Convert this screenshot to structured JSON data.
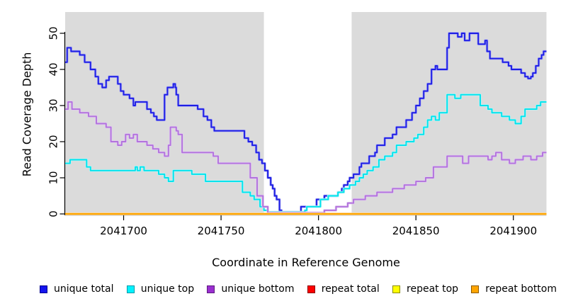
{
  "axis": {
    "xlabel": "Coordinate in Reference Genome",
    "ylabel": "Read Coverage Depth"
  },
  "legend": {
    "items": [
      {
        "label": "unique total",
        "fill": "#1414EE",
        "border": "#000090"
      },
      {
        "label": "unique top",
        "fill": "#00F2FF",
        "border": "#009AA8"
      },
      {
        "label": "unique bottom",
        "fill": "#9A2FD0",
        "border": "#5E1A80"
      },
      {
        "label": "repeat total",
        "fill": "#FF0000",
        "border": "#8B0000"
      },
      {
        "label": "repeat top",
        "fill": "#FFFF00",
        "border": "#8B8B00"
      },
      {
        "label": "repeat bottom",
        "fill": "#FFA500",
        "border": "#8B5A00"
      }
    ]
  },
  "chart_data": {
    "type": "line",
    "step_mode": "after",
    "title": "",
    "xlabel": "Coordinate in Reference Genome",
    "ylabel": "Read Coverage Depth",
    "x_range": [
      2041670,
      2041917
    ],
    "y_range": [
      0,
      56
    ],
    "x_ticks": [
      2041700,
      2041750,
      2041800,
      2041850,
      2041900
    ],
    "y_ticks": [
      0,
      10,
      20,
      30,
      40,
      50
    ],
    "grid": false,
    "legend_position": "bottom",
    "plot_background": "#DBDBDB",
    "gap_band": {
      "from": 2041772,
      "to": 2041817,
      "color": "#FFFFFF"
    },
    "axis_color": "#000000",
    "series": [
      {
        "name": "unique total",
        "color": "#1E1EE4",
        "halo": "#A8A8F2",
        "points": [
          [
            2041670,
            42
          ],
          [
            2041671,
            46
          ],
          [
            2041673,
            45
          ],
          [
            2041677.5,
            44
          ],
          [
            2041680,
            42
          ],
          [
            2041683,
            40
          ],
          [
            2041685.5,
            38
          ],
          [
            2041687,
            36
          ],
          [
            2041689,
            35
          ],
          [
            2041691,
            37
          ],
          [
            2041692.5,
            38
          ],
          [
            2041697,
            36
          ],
          [
            2041698.5,
            34
          ],
          [
            2041700,
            33
          ],
          [
            2041703,
            32
          ],
          [
            2041705,
            30
          ],
          [
            2041706,
            31
          ],
          [
            2041712,
            29
          ],
          [
            2041714,
            28
          ],
          [
            2041715.5,
            27
          ],
          [
            2041717,
            26
          ],
          [
            2041721,
            33
          ],
          [
            2041722.5,
            35
          ],
          [
            2041725.5,
            36
          ],
          [
            2041726.5,
            35
          ],
          [
            2041727,
            33
          ],
          [
            2041728,
            30
          ],
          [
            2041738,
            29
          ],
          [
            2041741,
            27
          ],
          [
            2041743,
            26
          ],
          [
            2041745,
            24
          ],
          [
            2041746.5,
            23
          ],
          [
            2041762,
            21
          ],
          [
            2041764,
            20
          ],
          [
            2041766,
            19
          ],
          [
            2041768,
            17
          ],
          [
            2041769.5,
            15
          ],
          [
            2041771,
            14
          ],
          [
            2041772.5,
            12
          ],
          [
            2041774,
            10
          ],
          [
            2041775.5,
            8
          ],
          [
            2041776.5,
            7
          ],
          [
            2041777.5,
            5
          ],
          [
            2041778.5,
            4
          ],
          [
            2041780,
            1
          ],
          [
            2041781,
            0.5
          ],
          [
            2041791,
            2
          ],
          [
            2041799,
            4
          ],
          [
            2041803,
            5
          ],
          [
            2041810,
            6
          ],
          [
            2041812,
            7
          ],
          [
            2041813,
            8
          ],
          [
            2041815,
            9
          ],
          [
            2041816,
            10
          ],
          [
            2041818,
            11
          ],
          [
            2041821,
            13
          ],
          [
            2041822,
            14
          ],
          [
            2041826,
            16
          ],
          [
            2041829,
            17
          ],
          [
            2041830,
            19
          ],
          [
            2041834,
            21
          ],
          [
            2041838,
            22
          ],
          [
            2041840,
            24
          ],
          [
            2041845,
            26
          ],
          [
            2041848,
            28
          ],
          [
            2041850,
            30
          ],
          [
            2041852,
            32
          ],
          [
            2041854,
            34
          ],
          [
            2041856,
            36
          ],
          [
            2041858,
            40
          ],
          [
            2041860,
            41
          ],
          [
            2041861,
            40
          ],
          [
            2041866,
            46
          ],
          [
            2041867,
            50
          ],
          [
            2041871.5,
            49
          ],
          [
            2041873.5,
            50
          ],
          [
            2041875,
            48
          ],
          [
            2041877.5,
            50
          ],
          [
            2041882,
            47
          ],
          [
            2041885.5,
            48
          ],
          [
            2041886.5,
            45
          ],
          [
            2041888,
            43
          ],
          [
            2041894.5,
            42
          ],
          [
            2041897.5,
            41
          ],
          [
            2041899,
            40
          ],
          [
            2041904,
            39
          ],
          [
            2041906,
            38
          ],
          [
            2041907.5,
            37.5
          ],
          [
            2041909,
            38
          ],
          [
            2041910,
            39
          ],
          [
            2041911.5,
            41
          ],
          [
            2041913,
            43
          ],
          [
            2041914.5,
            44
          ],
          [
            2041915.5,
            45
          ]
        ]
      },
      {
        "name": "unique top",
        "color": "#00E2EC",
        "halo": "#B8F4F6",
        "points": [
          [
            2041670,
            14
          ],
          [
            2041672.5,
            15
          ],
          [
            2041681,
            13
          ],
          [
            2041683,
            12
          ],
          [
            2041706,
            13
          ],
          [
            2041707,
            12
          ],
          [
            2041708.5,
            13
          ],
          [
            2041710.5,
            12
          ],
          [
            2041718,
            11
          ],
          [
            2041721,
            10
          ],
          [
            2041723,
            9
          ],
          [
            2041725.5,
            12
          ],
          [
            2041735,
            11
          ],
          [
            2041742,
            9
          ],
          [
            2041761,
            6
          ],
          [
            2041765,
            5
          ],
          [
            2041767,
            4
          ],
          [
            2041770,
            2
          ],
          [
            2041772,
            1
          ],
          [
            2041774,
            0.5
          ],
          [
            2041793,
            1
          ],
          [
            2041794,
            2
          ],
          [
            2041801,
            4
          ],
          [
            2041805,
            5
          ],
          [
            2041810,
            6
          ],
          [
            2041813,
            7
          ],
          [
            2041816,
            8
          ],
          [
            2041819,
            9
          ],
          [
            2041821,
            10
          ],
          [
            2041823,
            11
          ],
          [
            2041825,
            12
          ],
          [
            2041828,
            13
          ],
          [
            2041831,
            15
          ],
          [
            2041834,
            16
          ],
          [
            2041838,
            17
          ],
          [
            2041840,
            19
          ],
          [
            2041845,
            20
          ],
          [
            2041849,
            21
          ],
          [
            2041851,
            22
          ],
          [
            2041854,
            24
          ],
          [
            2041856,
            26
          ],
          [
            2041858,
            27
          ],
          [
            2041860,
            26
          ],
          [
            2041862,
            28
          ],
          [
            2041866,
            33
          ],
          [
            2041870,
            32
          ],
          [
            2041873,
            33
          ],
          [
            2041883,
            30
          ],
          [
            2041887,
            29
          ],
          [
            2041889,
            28
          ],
          [
            2041894,
            27
          ],
          [
            2041898,
            26
          ],
          [
            2041901,
            25
          ],
          [
            2041904,
            27
          ],
          [
            2041906,
            29
          ],
          [
            2041912,
            30
          ],
          [
            2041914,
            31
          ]
        ]
      },
      {
        "name": "unique bottom",
        "color": "#B273DC",
        "halo": "#E2CBF2",
        "points": [
          [
            2041670,
            29
          ],
          [
            2041671.5,
            31
          ],
          [
            2041673.5,
            29
          ],
          [
            2041677.5,
            28
          ],
          [
            2041682,
            27
          ],
          [
            2041686,
            25
          ],
          [
            2041691,
            24
          ],
          [
            2041693.5,
            20
          ],
          [
            2041697,
            19
          ],
          [
            2041699,
            20
          ],
          [
            2041701,
            22
          ],
          [
            2041703,
            21
          ],
          [
            2041705,
            22
          ],
          [
            2041707,
            20
          ],
          [
            2041712,
            19
          ],
          [
            2041715,
            18
          ],
          [
            2041718,
            17
          ],
          [
            2041721,
            16
          ],
          [
            2041723,
            19
          ],
          [
            2041724,
            24
          ],
          [
            2041727,
            23
          ],
          [
            2041728,
            22
          ],
          [
            2041730,
            17
          ],
          [
            2041746,
            16
          ],
          [
            2041748.5,
            14
          ],
          [
            2041765,
            10
          ],
          [
            2041768.5,
            5
          ],
          [
            2041771.5,
            2
          ],
          [
            2041774,
            0.3
          ],
          [
            2041803,
            1
          ],
          [
            2041809,
            2
          ],
          [
            2041815,
            3
          ],
          [
            2041818,
            4
          ],
          [
            2041824,
            5
          ],
          [
            2041830,
            6
          ],
          [
            2041838,
            7
          ],
          [
            2041844,
            8
          ],
          [
            2041850,
            9
          ],
          [
            2041855,
            10
          ],
          [
            2041859,
            13
          ],
          [
            2041866,
            16
          ],
          [
            2041874,
            14
          ],
          [
            2041877,
            16
          ],
          [
            2041887,
            15
          ],
          [
            2041889,
            16
          ],
          [
            2041891,
            17
          ],
          [
            2041894,
            15
          ],
          [
            2041898,
            14
          ],
          [
            2041901,
            15
          ],
          [
            2041905,
            16
          ],
          [
            2041909,
            15
          ],
          [
            2041912,
            16
          ],
          [
            2041915,
            17
          ]
        ]
      },
      {
        "name": "repeat total",
        "color": "#E00000",
        "halo": "#F4A0A0",
        "points": [
          [
            2041670,
            0
          ]
        ]
      },
      {
        "name": "repeat top",
        "color": "#FFFF00",
        "halo": "#FFFFA0",
        "points": [
          [
            2041670,
            0
          ]
        ]
      },
      {
        "name": "repeat bottom",
        "color": "#FFA500",
        "halo": "#FFD493",
        "points": [
          [
            2041670,
            0
          ]
        ]
      }
    ]
  }
}
